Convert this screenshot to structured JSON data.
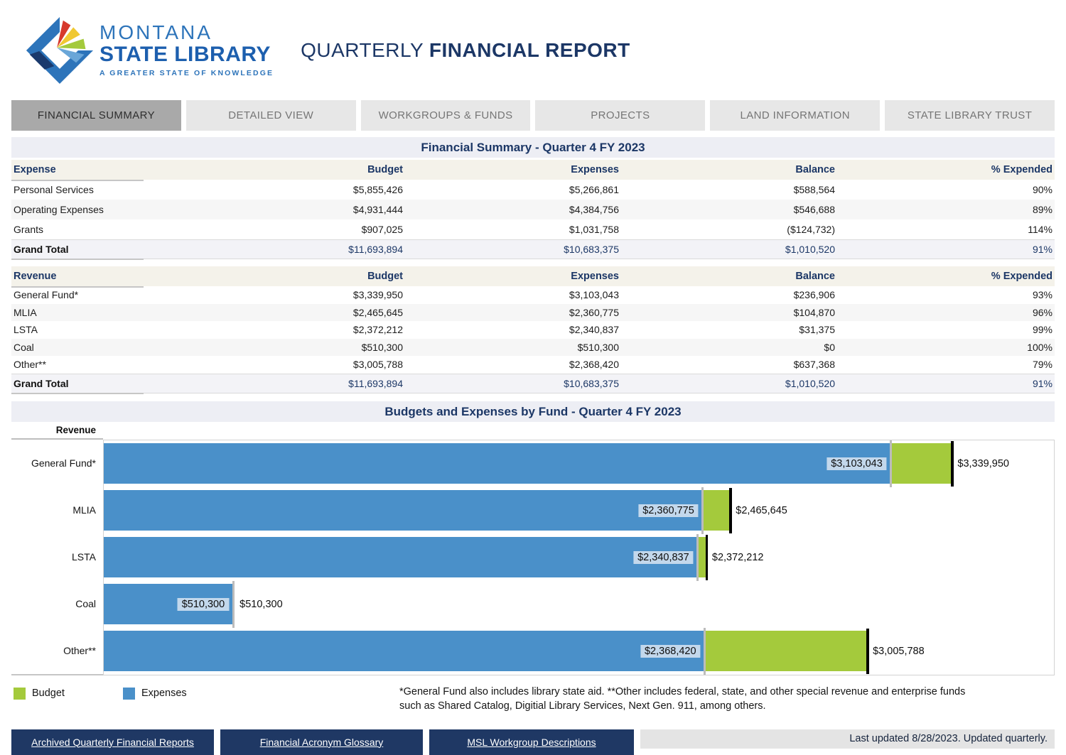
{
  "header": {
    "logo": {
      "line1": "MONTANA",
      "line2": "STATE LIBRARY",
      "tagline": "A GREATER STATE OF KNOWLEDGE"
    },
    "title_regular": "QUARTERLY ",
    "title_bold": "FINANCIAL REPORT"
  },
  "tabs": [
    {
      "label": "FINANCIAL SUMMARY",
      "active": true
    },
    {
      "label": "DETAILED VIEW",
      "active": false
    },
    {
      "label": "WORKGROUPS & FUNDS",
      "active": false
    },
    {
      "label": "PROJECTS",
      "active": false
    },
    {
      "label": "LAND INFORMATION",
      "active": false
    },
    {
      "label": "STATE LIBRARY TRUST",
      "active": false
    }
  ],
  "summary": {
    "title": "Financial Summary - Quarter 4 FY 2023",
    "tables": [
      {
        "id": "expense",
        "columns": [
          "Expense",
          "Budget",
          "Expenses",
          "Balance",
          "% Expended"
        ],
        "rows": [
          [
            "Personal Services",
            "$5,855,426",
            "$5,266,861",
            "$588,564",
            "90%"
          ],
          [
            "Operating Expenses",
            "$4,931,444",
            "$4,384,756",
            "$546,688",
            "89%"
          ],
          [
            "Grants",
            "$907,025",
            "$1,031,758",
            "($124,732)",
            "114%"
          ]
        ],
        "total": [
          "Grand Total",
          "$11,693,894",
          "$10,683,375",
          "$1,010,520",
          "91%"
        ],
        "row_height": "rh28"
      },
      {
        "id": "revenue",
        "columns": [
          "Revenue",
          "Budget",
          "Expenses",
          "Balance",
          "% Expended"
        ],
        "rows": [
          [
            "General Fund*",
            "$3,339,950",
            "$3,103,043",
            "$236,906",
            "93%"
          ],
          [
            "MLIA",
            "$2,465,645",
            "$2,360,775",
            "$104,870",
            "96%"
          ],
          [
            "LSTA",
            "$2,372,212",
            "$2,340,837",
            "$31,375",
            "99%"
          ],
          [
            "Coal",
            "$510,300",
            "$510,300",
            "$0",
            "100%"
          ],
          [
            "Other**",
            "$3,005,788",
            "$2,368,420",
            "$637,368",
            "79%"
          ]
        ],
        "total": [
          "Grand Total",
          "$11,693,894",
          "$10,683,375",
          "$1,010,520",
          "91%"
        ],
        "row_height": "rh24"
      }
    ]
  },
  "chart": {
    "section_title": "Budgets and Expenses by Fund - Quarter 4 FY 2023",
    "axis_label": "Revenue"
  },
  "chart_data": {
    "type": "bar",
    "orientation": "horizontal",
    "title": "Budgets and Expenses by Fund - Quarter 4 FY 2023",
    "categories": [
      "General Fund*",
      "MLIA",
      "LSTA",
      "Coal",
      "Other**"
    ],
    "series": [
      {
        "name": "Budget",
        "color": "#a4ca3c",
        "values": [
          3339950,
          2465645,
          2372212,
          510300,
          3005788
        ],
        "labels": [
          "$3,339,950",
          "$2,465,645",
          "$2,372,212",
          "$510,300",
          "$3,005,788"
        ]
      },
      {
        "name": "Expenses",
        "color": "#4a90c9",
        "values": [
          3103043,
          2360775,
          2340837,
          510300,
          2368420
        ],
        "labels": [
          "$3,103,043",
          "$2,360,775",
          "$2,340,837",
          "$510,300",
          "$2,368,420"
        ]
      }
    ],
    "xlim": [
      0,
      3745000
    ],
    "grid": false,
    "legend_position": "bottom-left",
    "marker_line_color": "#000000",
    "reference_line_color": "#bcbcbc"
  },
  "legend": [
    {
      "label": "Budget",
      "color": "#a4ca3c"
    },
    {
      "label": "Expenses",
      "color": "#4a90c9"
    }
  ],
  "footnote_lines": [
    "*General Fund also includes library state aid. **Other includes federal, state, and other special revenue and enterprise funds",
    "such as Shared Catalog, Digitial Library Services, Next Gen. 911, among others."
  ],
  "footer": {
    "links": [
      "Archived Quarterly Financial Reports",
      "Financial Acronym Glossary",
      "MSL Workgroup Descriptions"
    ],
    "last_updated": "Last updated 8/28/2023. Updated quarterly."
  },
  "colors": {
    "navy_text": "#1c3766",
    "footer_button": "#1f3864",
    "band_background": "#edeef4",
    "table_header_background": "#f4f2ea",
    "active_tab": "#a9a9a9",
    "inactive_tab": "#e7e7e7",
    "expense_label_box": "#c3d8ec"
  }
}
